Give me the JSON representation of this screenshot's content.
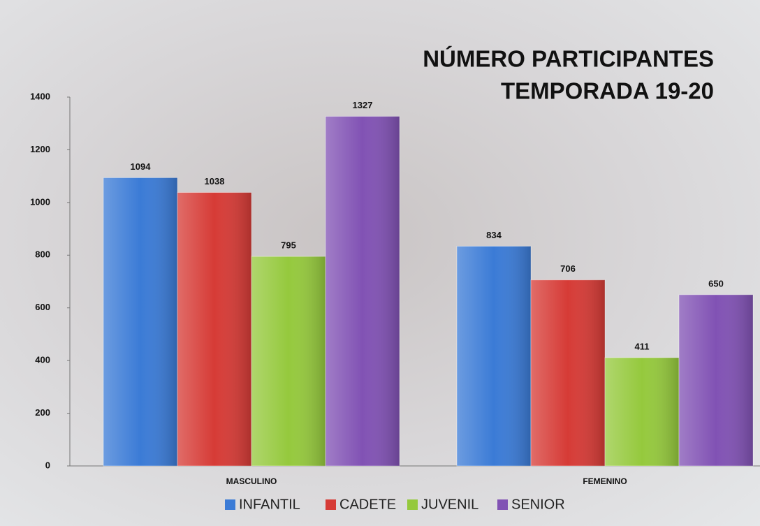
{
  "chart_data": {
    "type": "bar",
    "title": [
      "NÚMERO PARTICIPANTES",
      "TEMPORADA 19-20"
    ],
    "categories": [
      "MASCULINO",
      "FEMENINO"
    ],
    "series": [
      {
        "name": "INFANTIL",
        "color": "#3b7bd6",
        "values": [
          1094,
          834
        ]
      },
      {
        "name": "CADETE",
        "color": "#d63b36",
        "values": [
          1038,
          706
        ]
      },
      {
        "name": "JUVENIL",
        "color": "#95c93d",
        "values": [
          795,
          411
        ]
      },
      {
        "name": "SENIOR",
        "color": "#8152b4",
        "values": [
          1327,
          650
        ]
      }
    ],
    "ylim": [
      0,
      1400
    ],
    "yticks": [
      0,
      200,
      400,
      600,
      800,
      1000,
      1200,
      1400
    ],
    "legend": "bottom"
  }
}
